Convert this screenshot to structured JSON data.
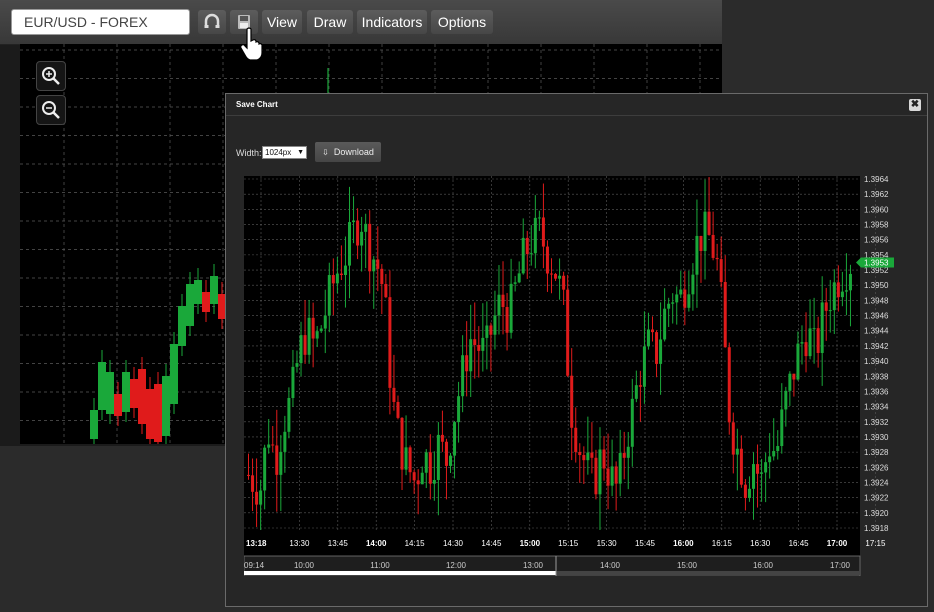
{
  "toolbar": {
    "symbol": "EUR/USD - FOREX",
    "view_label": "View",
    "draw_label": "Draw",
    "indicators_label": "Indicators",
    "options_label": "Options"
  },
  "modal": {
    "title": "Save Chart",
    "close_glyph": "✖",
    "width_label": "Width:",
    "width_value": "1024px",
    "download_label": "Download",
    "download_glyph": "⇩"
  },
  "colors": {
    "up": "#1aa83a",
    "down": "#e01b1b",
    "grid": "#5a5a5a",
    "price_tag": "#1aa83a"
  },
  "chart_data": {
    "type": "candlestick",
    "y_ticks": [
      "1.3964",
      "1.3962",
      "1.3960",
      "1.3958",
      "1.3956",
      "1.3954",
      "1.3952",
      "1.3950",
      "1.3948",
      "1.3946",
      "1.3944",
      "1.3942",
      "1.3940",
      "1.3938",
      "1.3936",
      "1.3934",
      "1.3932",
      "1.3930",
      "1.3928",
      "1.3926",
      "1.3924",
      "1.3922",
      "1.3920",
      "1.3918"
    ],
    "ylim": [
      1.3917,
      1.3965
    ],
    "x_ticks": [
      {
        "label": "13:18",
        "bold": true
      },
      {
        "label": "13:30",
        "bold": false
      },
      {
        "label": "13:45",
        "bold": false
      },
      {
        "label": "14:00",
        "bold": true
      },
      {
        "label": "14:15",
        "bold": false
      },
      {
        "label": "14:30",
        "bold": false
      },
      {
        "label": "14:45",
        "bold": false
      },
      {
        "label": "15:00",
        "bold": true
      },
      {
        "label": "15:15",
        "bold": false
      },
      {
        "label": "15:30",
        "bold": false
      },
      {
        "label": "15:45",
        "bold": false
      },
      {
        "label": "16:00",
        "bold": true
      },
      {
        "label": "16:15",
        "bold": false
      },
      {
        "label": "16:30",
        "bold": false
      },
      {
        "label": "16:45",
        "bold": false
      },
      {
        "label": "17:00",
        "bold": true
      },
      {
        "label": "17:15",
        "bold": false
      }
    ],
    "last_price": "1.3953",
    "navigator_ticks": [
      "09:14",
      "10:00",
      "11:00",
      "12:00",
      "13:00",
      "14:00",
      "15:00",
      "16:00",
      "17:00"
    ],
    "path": [
      [
        0,
        1.3925
      ],
      [
        6,
        1.3923
      ],
      [
        10,
        1.3931
      ],
      [
        14,
        1.3927
      ],
      [
        18,
        1.3932
      ],
      [
        22,
        1.3935
      ],
      [
        26,
        1.3941
      ],
      [
        30,
        1.3944
      ],
      [
        34,
        1.3942
      ],
      [
        38,
        1.3945
      ],
      [
        42,
        1.3949
      ],
      [
        46,
        1.3952
      ],
      [
        50,
        1.3954
      ],
      [
        54,
        1.3957
      ],
      [
        58,
        1.3959
      ],
      [
        62,
        1.3955
      ],
      [
        66,
        1.3953
      ],
      [
        70,
        1.3949
      ],
      [
        72,
        1.3941
      ],
      [
        74,
        1.3935
      ],
      [
        78,
        1.3929
      ],
      [
        82,
        1.3926
      ],
      [
        86,
        1.3924
      ],
      [
        90,
        1.3928
      ],
      [
        94,
        1.3926
      ],
      [
        98,
        1.3929
      ],
      [
        102,
        1.3927
      ],
      [
        106,
        1.3933
      ],
      [
        110,
        1.3938
      ],
      [
        114,
        1.3943
      ],
      [
        118,
        1.3942
      ],
      [
        122,
        1.3941
      ],
      [
        126,
        1.3945
      ],
      [
        130,
        1.3948
      ],
      [
        134,
        1.3946
      ],
      [
        138,
        1.395
      ],
      [
        142,
        1.3954
      ],
      [
        146,
        1.3956
      ],
      [
        150,
        1.3957
      ],
      [
        154,
        1.3954
      ],
      [
        158,
        1.3952
      ],
      [
        162,
        1.3948
      ],
      [
        164,
        1.3941
      ],
      [
        166,
        1.3934
      ],
      [
        170,
        1.3929
      ],
      [
        174,
        1.3926
      ],
      [
        178,
        1.3924
      ],
      [
        182,
        1.3928
      ],
      [
        186,
        1.3925
      ],
      [
        190,
        1.3923
      ],
      [
        194,
        1.3929
      ],
      [
        198,
        1.3934
      ],
      [
        202,
        1.3939
      ],
      [
        206,
        1.3942
      ],
      [
        210,
        1.3941
      ],
      [
        214,
        1.3946
      ],
      [
        218,
        1.3949
      ],
      [
        222,
        1.3948
      ],
      [
        226,
        1.3951
      ],
      [
        230,
        1.3955
      ],
      [
        234,
        1.3957
      ],
      [
        238,
        1.3956
      ],
      [
        242,
        1.3952
      ],
      [
        244,
        1.3946
      ],
      [
        246,
        1.3939
      ],
      [
        248,
        1.3932
      ],
      [
        252,
        1.3928
      ],
      [
        256,
        1.3924
      ],
      [
        260,
        1.3927
      ],
      [
        264,
        1.3924
      ],
      [
        268,
        1.3929
      ],
      [
        272,
        1.3928
      ],
      [
        276,
        1.3934
      ],
      [
        280,
        1.3938
      ],
      [
        284,
        1.3942
      ],
      [
        288,
        1.3944
      ],
      [
        292,
        1.3941
      ],
      [
        296,
        1.3946
      ],
      [
        300,
        1.3949
      ],
      [
        304,
        1.3951
      ],
      [
        310,
        1.3953
      ]
    ]
  }
}
